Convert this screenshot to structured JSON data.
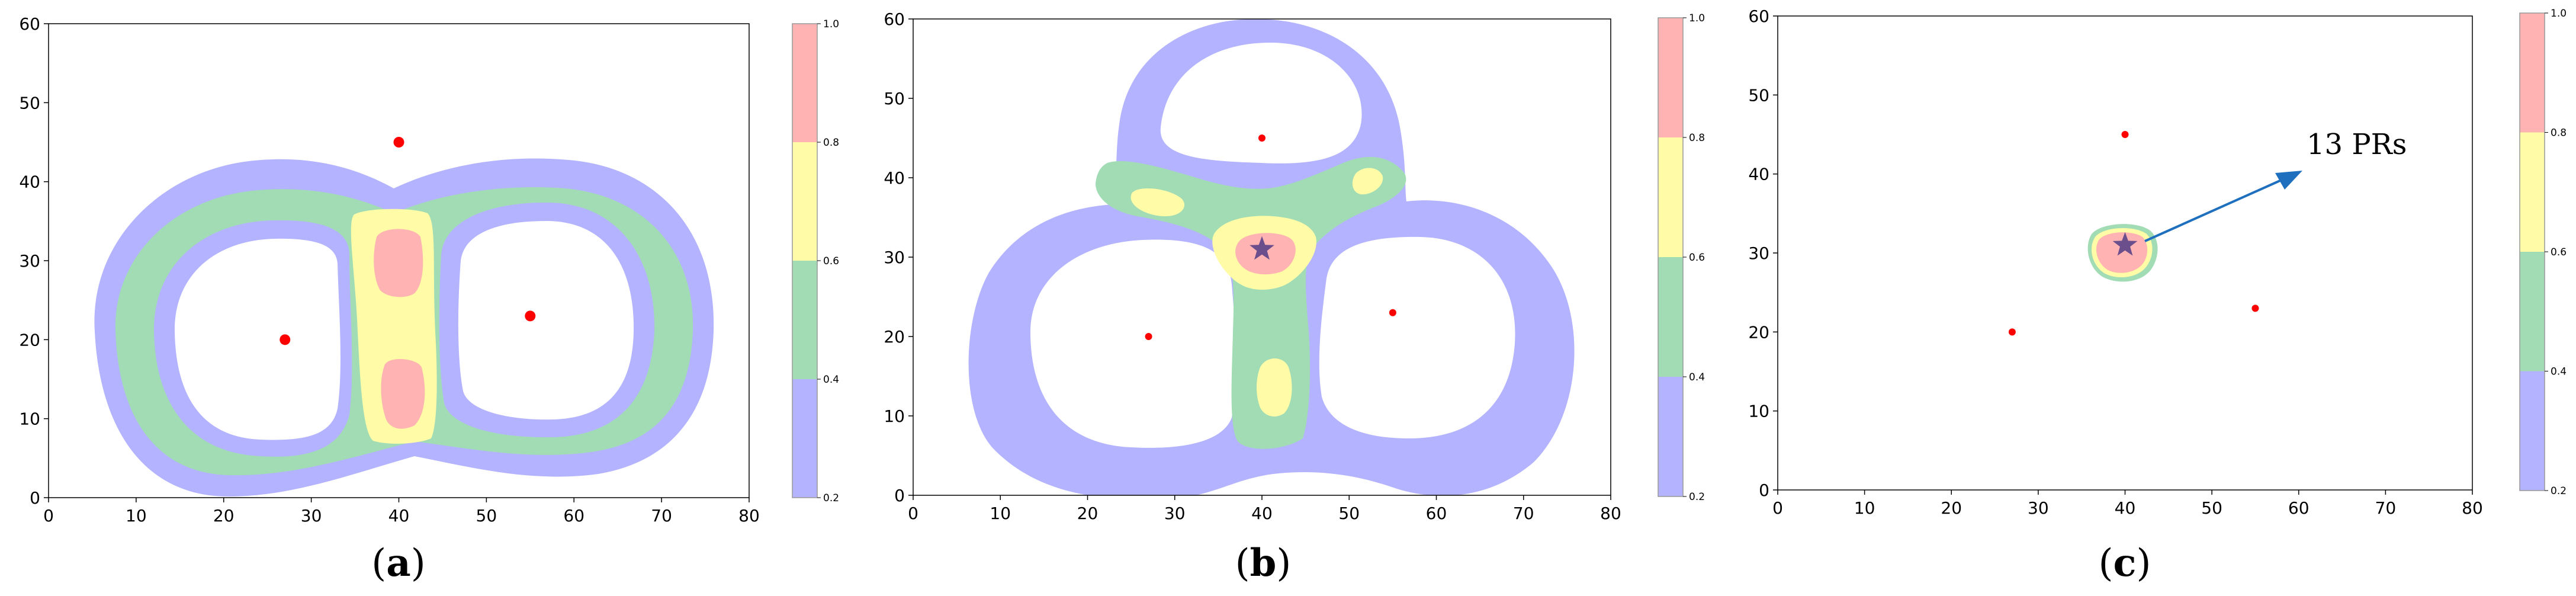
{
  "colors": {
    "level_0_2": "#b3b3ff",
    "level_0_4": "#a2dcb5",
    "level_0_6": "#fffba6",
    "level_0_8": "#ffb3b3",
    "point": "#ff0000",
    "star": "#6b4e8c",
    "arrow": "#1f6fbf"
  },
  "colorbar": {
    "ticks": [
      "0.2",
      "0.4",
      "0.6",
      "0.8",
      "1.0"
    ]
  },
  "chart_data": [
    {
      "type": "contour",
      "panel_label": "a",
      "xlim": [
        0,
        80
      ],
      "ylim": [
        0,
        60
      ],
      "xticks": [
        0,
        10,
        20,
        30,
        40,
        50,
        60,
        70,
        80
      ],
      "yticks": [
        0,
        10,
        20,
        30,
        40,
        50,
        60
      ],
      "points": [
        {
          "x": 40,
          "y": 45
        },
        {
          "x": 27,
          "y": 20
        },
        {
          "x": 55,
          "y": 23
        }
      ],
      "levels": [
        0.2,
        0.4,
        0.6,
        0.8,
        1.0
      ]
    },
    {
      "type": "contour",
      "panel_label": "b",
      "xlim": [
        0,
        80
      ],
      "ylim": [
        0,
        60
      ],
      "xticks": [
        0,
        10,
        20,
        30,
        40,
        50,
        60,
        70,
        80
      ],
      "yticks": [
        0,
        10,
        20,
        30,
        40,
        50,
        60
      ],
      "points": [
        {
          "x": 40,
          "y": 45
        },
        {
          "x": 27,
          "y": 20
        },
        {
          "x": 55,
          "y": 23
        }
      ],
      "star": {
        "x": 40,
        "y": 31
      },
      "levels": [
        0.2,
        0.4,
        0.6,
        0.8,
        1.0
      ]
    },
    {
      "type": "contour",
      "panel_label": "c",
      "xlim": [
        0,
        80
      ],
      "ylim": [
        0,
        60
      ],
      "xticks": [
        0,
        10,
        20,
        30,
        40,
        50,
        60,
        70,
        80
      ],
      "yticks": [
        0,
        10,
        20,
        30,
        40,
        50,
        60
      ],
      "points": [
        {
          "x": 40,
          "y": 45
        },
        {
          "x": 27,
          "y": 20
        },
        {
          "x": 55,
          "y": 23
        }
      ],
      "star": {
        "x": 40,
        "y": 31
      },
      "annotation": "13 PRs",
      "levels": [
        0.2,
        0.4,
        0.6,
        0.8,
        1.0
      ]
    }
  ]
}
